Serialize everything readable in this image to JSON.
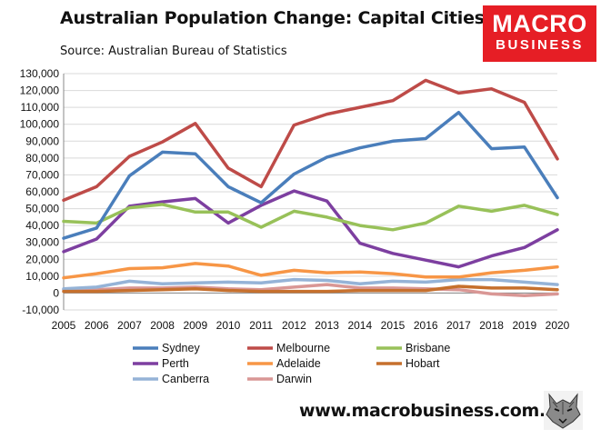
{
  "header": {
    "title": "Australian Population Change: Capital Cities",
    "subtitle": "Source: Australian Bureau of Statistics"
  },
  "logo": {
    "line1": "MACRO",
    "line2": "BUSINESS",
    "color": "#e61e25"
  },
  "footer": {
    "website": "www.macrobusiness.com.au",
    "icon": "wolf-icon"
  },
  "chart_data": {
    "type": "line",
    "title": "Australian Population Change: Capital Cities",
    "xlabel": "",
    "ylabel": "",
    "ylim": [
      -10000,
      130000
    ],
    "ytick_step": 10000,
    "ytick_labels": [
      "-10,000",
      "0",
      "10,000",
      "20,000",
      "30,000",
      "40,000",
      "50,000",
      "60,000",
      "70,000",
      "80,000",
      "90,000",
      "100,000",
      "110,000",
      "120,000",
      "130,000"
    ],
    "grid": true,
    "legend_position": "bottom",
    "x": [
      "2005",
      "2006",
      "2007",
      "2008",
      "2009",
      "2010",
      "2011",
      "2012",
      "2013",
      "2014",
      "2015",
      "2016",
      "2017",
      "2018",
      "2019",
      "2020"
    ],
    "series": [
      {
        "name": "Sydney",
        "color": "#4a7ebb",
        "values": [
          32500,
          38500,
          69500,
          83500,
          82500,
          63000,
          53500,
          70500,
          80500,
          86000,
          90000,
          91500,
          107000,
          85500,
          86500,
          56500
        ]
      },
      {
        "name": "Melbourne",
        "color": "#be4b48",
        "values": [
          55000,
          63000,
          81000,
          89500,
          100500,
          74000,
          63000,
          99500,
          106000,
          110000,
          114000,
          126000,
          118500,
          121000,
          113000,
          79500
        ]
      },
      {
        "name": "Brisbane",
        "color": "#98c159",
        "values": [
          42500,
          41500,
          50500,
          52500,
          48000,
          48000,
          39000,
          48500,
          45000,
          40000,
          37500,
          41500,
          51500,
          48500,
          52000,
          46500
        ]
      },
      {
        "name": "Perth",
        "color": "#7d3fa0",
        "values": [
          24500,
          32000,
          51500,
          54000,
          56000,
          41500,
          52000,
          60500,
          54500,
          29500,
          23500,
          19500,
          15500,
          22000,
          27000,
          37500
        ]
      },
      {
        "name": "Adelaide",
        "color": "#f79646",
        "values": [
          9000,
          11500,
          14500,
          15000,
          17500,
          16000,
          10500,
          13500,
          12000,
          12500,
          11500,
          9500,
          9500,
          12000,
          13500,
          15500
        ]
      },
      {
        "name": "Hobart",
        "color": "#c6702d",
        "values": [
          1000,
          1000,
          1500,
          2000,
          2500,
          1500,
          1000,
          1000,
          1000,
          1500,
          1500,
          1500,
          4000,
          3000,
          3000,
          2000
        ]
      },
      {
        "name": "Canberra",
        "color": "#95b3d7",
        "values": [
          2500,
          3500,
          7000,
          5500,
          6000,
          6500,
          6000,
          8000,
          7500,
          5500,
          7000,
          6500,
          8000,
          8000,
          6500,
          5000
        ]
      },
      {
        "name": "Darwin",
        "color": "#d99795",
        "values": [
          2000,
          2000,
          3000,
          3000,
          3500,
          2500,
          2000,
          3500,
          5000,
          3000,
          3000,
          2500,
          2000,
          -500,
          -1500,
          -500
        ]
      }
    ]
  }
}
